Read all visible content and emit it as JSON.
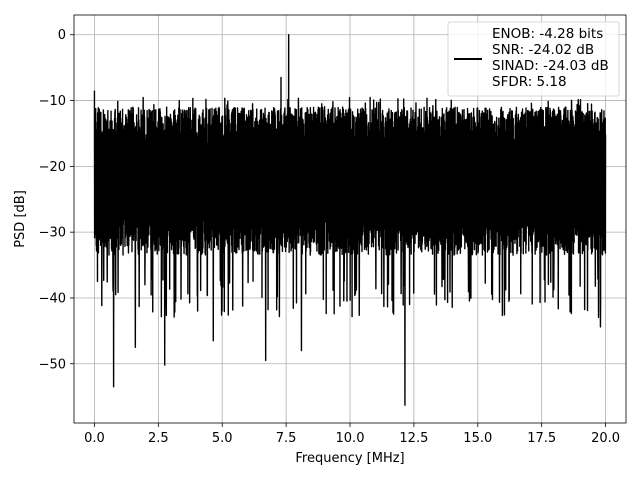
{
  "chart_data": {
    "type": "line",
    "title": "",
    "xlabel": "Frequency [MHz]",
    "ylabel": "PSD [dB]",
    "xlim": [
      -0.8,
      20.8
    ],
    "ylim": [
      -59,
      3
    ],
    "x_ticks": [
      0.0,
      2.5,
      5.0,
      7.5,
      10.0,
      12.5,
      15.0,
      17.5,
      20.0
    ],
    "x_tick_labels": [
      "0.0",
      "2.5",
      "5.0",
      "7.5",
      "10.0",
      "12.5",
      "15.0",
      "17.5",
      "20.0"
    ],
    "y_ticks": [
      0,
      -10,
      -20,
      -30,
      -40,
      -50
    ],
    "y_tick_labels": [
      "0",
      "−10",
      "−20",
      "−30",
      "−40",
      "−50"
    ],
    "grid": true,
    "legend_position": "top-right",
    "legend_lines": [
      "ENOB: -4.28 bits",
      "SNR: -24.02 dB",
      "SINAD: -24.03 dB",
      "SFDR: 5.18"
    ],
    "series": [
      {
        "color": "#000000",
        "x_range": [
          0,
          20
        ],
        "typical_upper_db": -12,
        "typical_lower_db": -33,
        "peaks": [
          {
            "x": 0.0,
            "y": -8.5
          },
          {
            "x": 2.6,
            "y": -12.5
          },
          {
            "x": 7.6,
            "y": 0.0
          },
          {
            "x": 7.3,
            "y": -6.5
          }
        ],
        "dips": [
          {
            "x": 0.75,
            "y": -53.5
          },
          {
            "x": 2.75,
            "y": -50.2
          },
          {
            "x": 6.7,
            "y": -49.5
          },
          {
            "x": 8.1,
            "y": -48.0
          },
          {
            "x": 12.15,
            "y": -56.3
          },
          {
            "x": 1.6,
            "y": -47.5
          },
          {
            "x": 4.65,
            "y": -46.5
          },
          {
            "x": 19.8,
            "y": -44.4
          }
        ]
      }
    ]
  }
}
